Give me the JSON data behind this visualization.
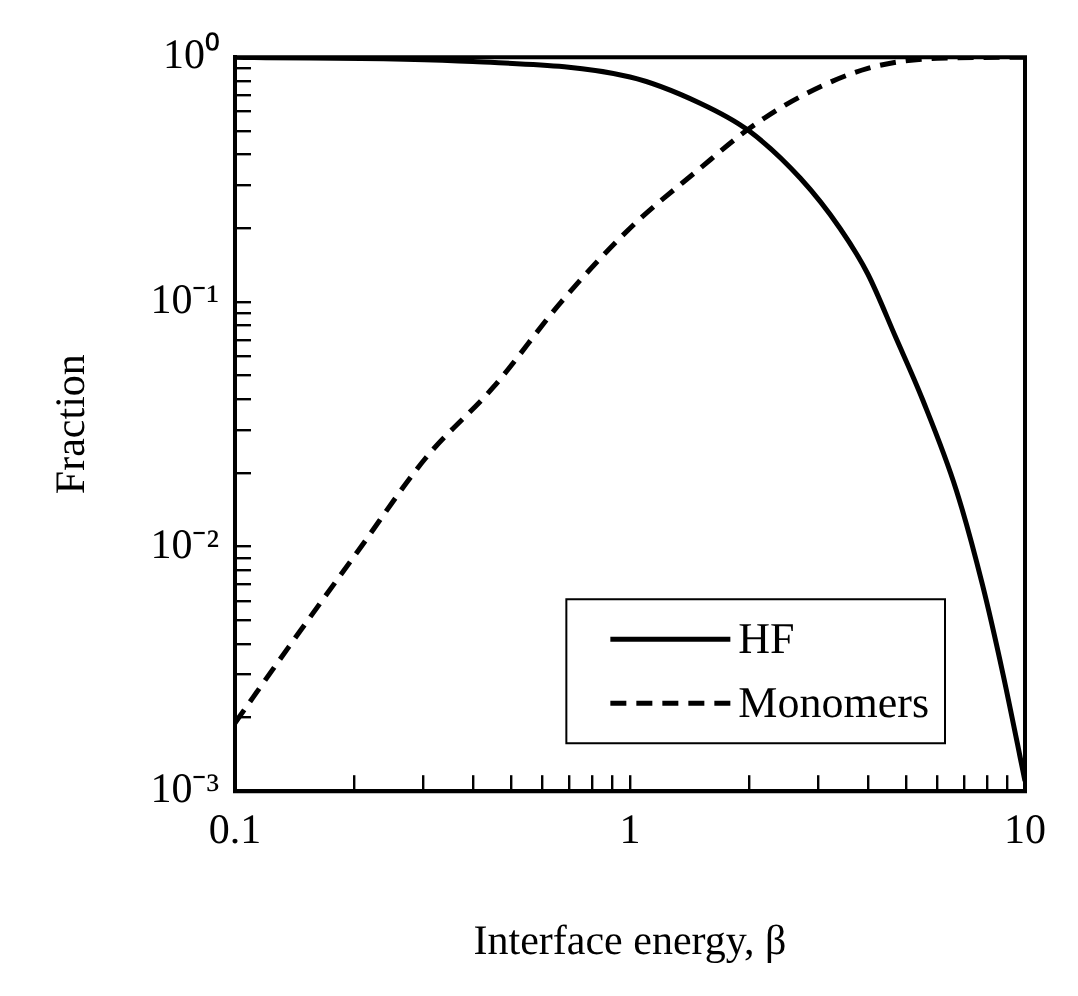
{
  "chart_data": {
    "type": "line",
    "xlabel": "Interface energy, β",
    "ylabel": "Fraction",
    "log": "xy",
    "xlim": [
      0.1,
      10
    ],
    "ylim": [
      0.001,
      1
    ],
    "xticks": [
      0.1,
      {
        "value": 0.2,
        "label": null
      },
      {
        "value": 0.3,
        "label": null
      },
      {
        "value": 0.4,
        "label": null
      },
      {
        "value": 0.5,
        "label": null
      },
      {
        "value": 0.6,
        "label": null
      },
      {
        "value": 0.7,
        "label": null
      },
      {
        "value": 0.8,
        "label": null
      },
      {
        "value": 0.9,
        "label": null
      },
      1,
      {
        "value": 2,
        "label": null
      },
      {
        "value": 3,
        "label": null
      },
      {
        "value": 4,
        "label": null
      },
      {
        "value": 5,
        "label": null
      },
      {
        "value": 6,
        "label": null
      },
      {
        "value": 7,
        "label": null
      },
      {
        "value": 8,
        "label": null
      },
      {
        "value": 9,
        "label": null
      },
      10
    ],
    "yticks": [
      {
        "value": 0.001,
        "label": "10⁻³"
      },
      {
        "value": 0.002,
        "label": null
      },
      {
        "value": 0.003,
        "label": null
      },
      {
        "value": 0.004,
        "label": null
      },
      {
        "value": 0.005,
        "label": null
      },
      {
        "value": 0.006,
        "label": null
      },
      {
        "value": 0.007,
        "label": null
      },
      {
        "value": 0.008,
        "label": null
      },
      {
        "value": 0.009,
        "label": null
      },
      {
        "value": 0.01,
        "label": "10⁻²"
      },
      {
        "value": 0.02,
        "label": null
      },
      {
        "value": 0.03,
        "label": null
      },
      {
        "value": 0.04,
        "label": null
      },
      {
        "value": 0.05,
        "label": null
      },
      {
        "value": 0.06,
        "label": null
      },
      {
        "value": 0.07,
        "label": null
      },
      {
        "value": 0.08,
        "label": null
      },
      {
        "value": 0.09,
        "label": null
      },
      {
        "value": 0.1,
        "label": "10⁻¹"
      },
      {
        "value": 0.2,
        "label": null
      },
      {
        "value": 0.3,
        "label": null
      },
      {
        "value": 0.4,
        "label": null
      },
      {
        "value": 0.5,
        "label": null
      },
      {
        "value": 0.6,
        "label": null
      },
      {
        "value": 0.7,
        "label": null
      },
      {
        "value": 0.8,
        "label": null
      },
      {
        "value": 0.9,
        "label": null
      },
      {
        "value": 1,
        "label": "10⁰"
      }
    ],
    "grid": false,
    "legend": "bottom right",
    "marker": "none",
    "series": [
      {
        "name": "HF",
        "color": "#000000",
        "line_style": "solid",
        "x": [
          0.1,
          0.4,
          1,
          1.5,
          2,
          2.7,
          3.4,
          4,
          4.7,
          5.5,
          6.7,
          7.8,
          8.8,
          10
        ],
        "values": [
          1,
          0.96,
          0.83,
          0.65,
          0.5,
          0.32,
          0.2,
          0.13,
          0.072,
          0.04,
          0.017,
          0.007,
          0.003,
          0.0011
        ]
      },
      {
        "name": "Monomers",
        "color": "#000000",
        "line_style": "dashed",
        "x": [
          0.1,
          0.137,
          0.204,
          0.304,
          0.452,
          0.67,
          1,
          1.5,
          2,
          2.7,
          4,
          6,
          10
        ],
        "values": [
          0.0019,
          0.0039,
          0.0095,
          0.023,
          0.045,
          0.1,
          0.2,
          0.35,
          0.51,
          0.69,
          0.9,
          0.99,
          1
        ]
      }
    ]
  }
}
